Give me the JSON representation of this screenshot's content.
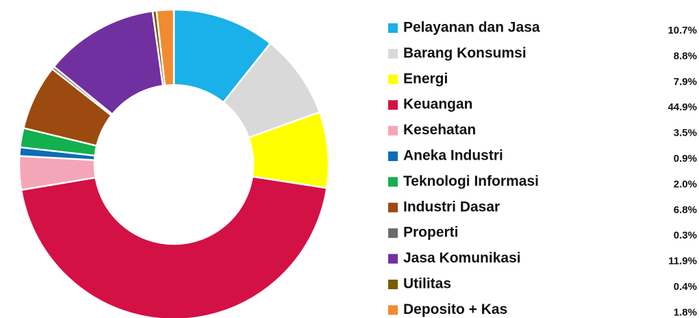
{
  "chart_data": {
    "type": "pie",
    "donut": true,
    "categories": [
      "Pelayanan dan Jasa",
      "Barang Konsumsi",
      "Energi",
      "Keuangan",
      "Kesehatan",
      "Aneka Industri",
      "Teknologi Informasi",
      "Industri Dasar",
      "Properti",
      "Jasa Komunikasi",
      "Utilitas",
      "Deposito + Kas"
    ],
    "values": [
      10.7,
      8.8,
      7.9,
      44.9,
      3.5,
      0.9,
      2.0,
      6.8,
      0.3,
      11.9,
      0.4,
      1.8
    ],
    "value_labels": [
      "10.7%",
      "8.8%",
      "7.9%",
      "44.9%",
      "3.5%",
      "0.9%",
      "2.0%",
      "6.8%",
      "0.3%",
      "11.9%",
      "0.4%",
      "1.8%"
    ],
    "colors": [
      "#1ab0e8",
      "#d9d9d9",
      "#ffff00",
      "#d31145",
      "#f4a6b8",
      "#0b6db5",
      "#12b04e",
      "#9c4a0f",
      "#6b6b6b",
      "#7030a0",
      "#7a5c00",
      "#f28a30"
    ],
    "legend": "right"
  }
}
